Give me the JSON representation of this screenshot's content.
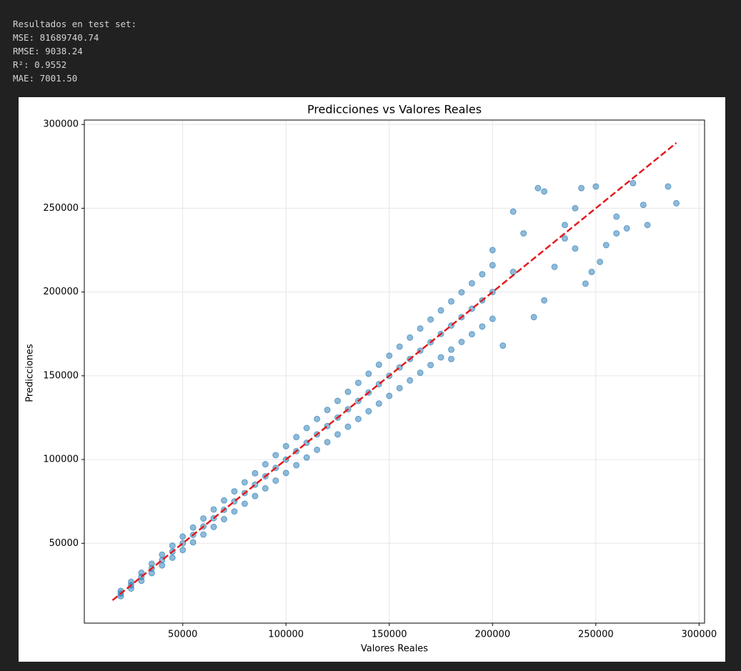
{
  "console": [
    "Resultados en test set:",
    "MSE: 81689740.74",
    "RMSE: 9038.24",
    "R²: 0.9552",
    "MAE: 7001.50"
  ],
  "chart_data": {
    "type": "scatter",
    "title": "Predicciones vs Valores Reales",
    "x_label": "Valores Reales",
    "y_label": "Predicciones",
    "color": "#1f77b4",
    "grid": true,
    "xlim": [
      2350,
      302650
    ],
    "ylim": [
      2350,
      302650
    ],
    "xticks": [
      50000,
      100000,
      150000,
      200000,
      250000,
      300000
    ],
    "yticks": [
      50000,
      100000,
      150000,
      200000,
      250000,
      300000
    ],
    "x": [
      20000,
      20000,
      20000,
      25000,
      25000,
      25000,
      30000,
      30000,
      30000,
      35000,
      35000,
      35000,
      40000,
      40000,
      40000,
      45000,
      45000,
      45000,
      50000,
      50000,
      50000,
      55000,
      55000,
      55000,
      60000,
      60000,
      60000,
      65000,
      65000,
      65000,
      70000,
      70000,
      70000,
      75000,
      75000,
      75000,
      80000,
      80000,
      80000,
      85000,
      85000,
      85000,
      90000,
      90000,
      90000,
      95000,
      95000,
      95000,
      100000,
      100000,
      100000,
      105000,
      105000,
      105000,
      110000,
      110000,
      110000,
      115000,
      115000,
      115000,
      120000,
      120000,
      120000,
      125000,
      125000,
      125000,
      130000,
      130000,
      130000,
      135000,
      135000,
      135000,
      140000,
      140000,
      140000,
      145000,
      145000,
      145000,
      150000,
      150000,
      150000,
      155000,
      155000,
      155000,
      160000,
      160000,
      160000,
      165000,
      165000,
      165000,
      170000,
      170000,
      170000,
      175000,
      175000,
      175000,
      180000,
      180000,
      180000,
      185000,
      185000,
      185000,
      190000,
      190000,
      190000,
      195000,
      195000,
      195000,
      200000,
      200000,
      200000,
      210000,
      222000,
      225000,
      243000,
      250000,
      268000,
      285000,
      289000,
      273000,
      260000,
      235000,
      215000,
      240000,
      252000,
      230000,
      245000,
      260000,
      275000,
      200000,
      210000,
      225000,
      220000,
      205000,
      180000,
      235000,
      255000,
      265000,
      240000,
      248000
    ],
    "values": [
      18400,
      20000,
      21600,
      23000,
      25000,
      27000,
      27600,
      30000,
      32400,
      32200,
      35000,
      37800,
      36800,
      40000,
      43200,
      41400,
      45000,
      48600,
      46000,
      50000,
      54000,
      50600,
      55000,
      59400,
      55200,
      60000,
      64800,
      59800,
      65000,
      70200,
      64400,
      70000,
      75600,
      69000,
      75000,
      81000,
      73600,
      80000,
      86400,
      78200,
      85000,
      91800,
      82800,
      90000,
      97200,
      87400,
      95000,
      102600,
      92000,
      100000,
      108000,
      96600,
      105000,
      113400,
      101200,
      110000,
      118800,
      105800,
      115000,
      124200,
      110400,
      120000,
      129600,
      115000,
      125000,
      135000,
      119600,
      130000,
      140400,
      124200,
      135000,
      145800,
      128800,
      140000,
      151200,
      133400,
      145000,
      156600,
      138000,
      150000,
      162000,
      142600,
      155000,
      167400,
      147200,
      160000,
      172800,
      151800,
      165000,
      178200,
      156400,
      170000,
      183600,
      161000,
      175000,
      189000,
      165600,
      180000,
      194400,
      170200,
      185000,
      199800,
      174800,
      190000,
      205200,
      179400,
      195000,
      210600,
      184000,
      200000,
      216000,
      248000,
      262000,
      260000,
      262000,
      263000,
      265000,
      263000,
      253000,
      252000,
      245000,
      240000,
      235000,
      226000,
      218000,
      215000,
      205000,
      235000,
      240000,
      225000,
      212000,
      195000,
      185000,
      168000,
      160000,
      232000,
      228000,
      238000,
      250000,
      212000
    ],
    "reference": {
      "x": [
        16000,
        289000
      ],
      "values": [
        16000,
        289000
      ],
      "color": "#e41a1c"
    }
  }
}
